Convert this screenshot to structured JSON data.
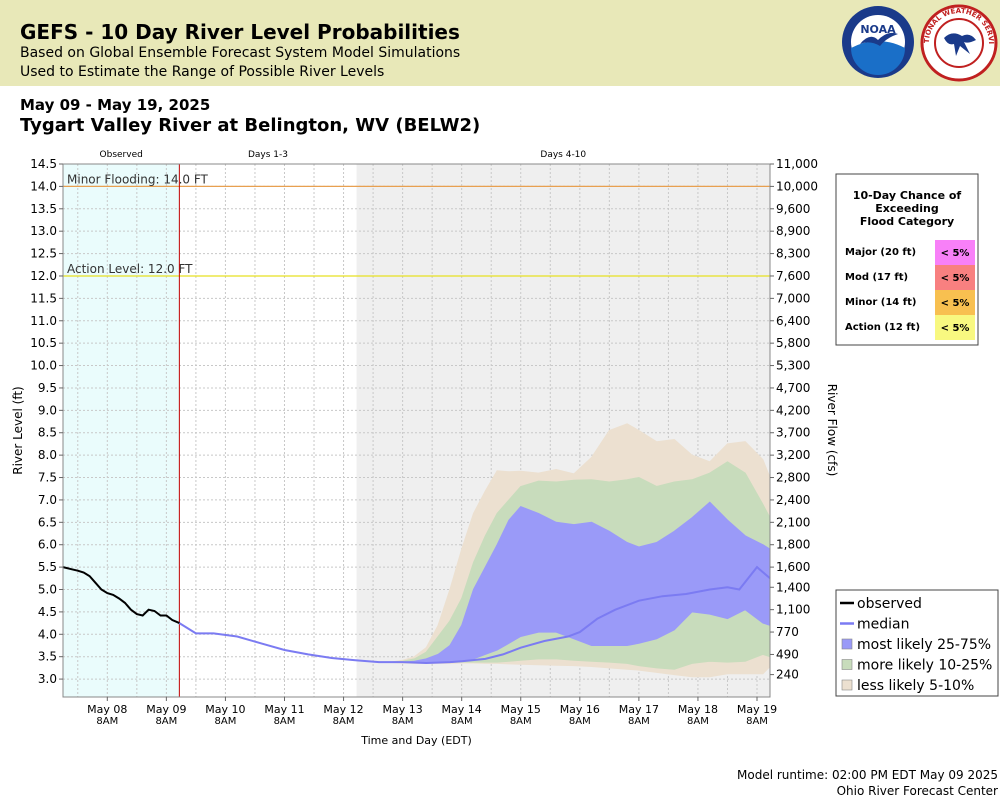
{
  "header": {
    "title": "GEFS - 10 Day River Level Probabilities",
    "subtitle1": "Based on Global Ensemble Forecast System Model Simulations",
    "subtitle2": "Used to Estimate the Range of Possible River Levels",
    "noaa_logo_text": "NOAA",
    "nws_logo_text": "NATIONAL WEATHER SERVICE"
  },
  "date_range": "May 09 - May 19, 2025",
  "station": "Tygart Valley River at Belington, WV (BELW2)",
  "footer": {
    "runtime": "Model runtime: 02:00 PM EDT May 09 2025",
    "center": "Ohio River Forecast Center"
  },
  "colors": {
    "observed_bg": "#eafcfc",
    "days4_10_bg": "#efefef",
    "observed_line": "#000000",
    "median": "#7b7bf2",
    "band_25_75": "#9a9af8",
    "band_10_25": "#c8dcbc",
    "band_5_10": "#ece0d0",
    "minor_line": "#e8a050",
    "action_line": "#e8e020",
    "forecast_start": "#c00000",
    "major_cell": "#f880f8",
    "mod_cell": "#f88080",
    "minor_cell": "#f8c050",
    "action_cell": "#f8f880"
  },
  "chart_data": {
    "type": "area",
    "xlabel": "Time and Day (EDT)",
    "ylabel": "River Level (ft)",
    "y2label": "River Flow (cfs)",
    "ylim": [
      2.6,
      14.5
    ],
    "xlim": [
      -1.75,
      10.22
    ],
    "x_unit": "days since May 09 8AM EDT",
    "forecast_start": 0.22,
    "days4_start": 3.22,
    "period_labels": [
      "Observed",
      "Days 1-3",
      "Days 4-10"
    ],
    "yticks": [
      3.0,
      3.5,
      4.0,
      4.5,
      5.0,
      5.5,
      6.0,
      6.5,
      7.0,
      7.5,
      8.0,
      8.5,
      9.0,
      9.5,
      10.0,
      10.5,
      11.0,
      11.5,
      12.0,
      12.5,
      13.0,
      13.5,
      14.0,
      14.5
    ],
    "ytick_labels": [
      "3.0",
      "3.5",
      "4.0",
      "4.5",
      "5.0",
      "5.5",
      "6.0",
      "6.5",
      "7.0",
      "7.5",
      "8.0",
      "8.5",
      "9.0",
      "9.5",
      "10.0",
      "10.5",
      "11.0",
      "11.5",
      "12.0",
      "12.5",
      "13.0",
      "13.5",
      "14.0",
      "14.5"
    ],
    "y2ticks": [
      {
        "stage": 3.1,
        "label": "240"
      },
      {
        "stage": 3.55,
        "label": "490"
      },
      {
        "stage": 4.05,
        "label": "770"
      },
      {
        "stage": 4.55,
        "label": "1,100"
      },
      {
        "stage": 5.05,
        "label": "1,400"
      },
      {
        "stage": 5.5,
        "label": "1,600"
      },
      {
        "stage": 6.0,
        "label": "1,800"
      },
      {
        "stage": 6.5,
        "label": "2,100"
      },
      {
        "stage": 7.0,
        "label": "2,400"
      },
      {
        "stage": 7.5,
        "label": "2,800"
      },
      {
        "stage": 8.0,
        "label": "3,200"
      },
      {
        "stage": 8.5,
        "label": "3,700"
      },
      {
        "stage": 9.0,
        "label": "4,200"
      },
      {
        "stage": 9.5,
        "label": "4,700"
      },
      {
        "stage": 10.0,
        "label": "5,300"
      },
      {
        "stage": 10.5,
        "label": "5,800"
      },
      {
        "stage": 11.0,
        "label": "6,400"
      },
      {
        "stage": 11.5,
        "label": "7,000"
      },
      {
        "stage": 12.0,
        "label": "7,600"
      },
      {
        "stage": 12.5,
        "label": "8,300"
      },
      {
        "stage": 13.0,
        "label": "8,900"
      },
      {
        "stage": 13.5,
        "label": "9,600"
      },
      {
        "stage": 14.0,
        "label": "10,000"
      },
      {
        "stage": 14.5,
        "label": "11,000"
      }
    ],
    "xticks": [
      {
        "x": -1.0,
        "label1": "May 08",
        "label2": "8AM"
      },
      {
        "x": 0.0,
        "label1": "May 09",
        "label2": "8AM"
      },
      {
        "x": 1.0,
        "label1": "May 10",
        "label2": "8AM"
      },
      {
        "x": 2.0,
        "label1": "May 11",
        "label2": "8AM"
      },
      {
        "x": 3.0,
        "label1": "May 12",
        "label2": "8AM"
      },
      {
        "x": 4.0,
        "label1": "May 13",
        "label2": "8AM"
      },
      {
        "x": 5.0,
        "label1": "May 14",
        "label2": "8AM"
      },
      {
        "x": 6.0,
        "label1": "May 15",
        "label2": "8AM"
      },
      {
        "x": 7.0,
        "label1": "May 16",
        "label2": "8AM"
      },
      {
        "x": 8.0,
        "label1": "May 17",
        "label2": "8AM"
      },
      {
        "x": 9.0,
        "label1": "May 18",
        "label2": "8AM"
      },
      {
        "x": 10.0,
        "label1": "May 19",
        "label2": "8AM"
      }
    ],
    "thresholds": [
      {
        "name": "Minor Flooding",
        "label": "Minor Flooding: 14.0 FT",
        "stage": 14.0
      },
      {
        "name": "Action Level",
        "label": "Action Level: 12.0 FT",
        "stage": 12.0
      }
    ],
    "observed": {
      "x": [
        -1.75,
        -1.6,
        -1.5,
        -1.4,
        -1.3,
        -1.2,
        -1.1,
        -1.0,
        -0.9,
        -0.8,
        -0.7,
        -0.6,
        -0.5,
        -0.4,
        -0.3,
        -0.2,
        -0.1,
        0.0,
        0.1,
        0.22
      ],
      "y": [
        5.5,
        5.45,
        5.42,
        5.38,
        5.3,
        5.15,
        5.0,
        4.92,
        4.88,
        4.8,
        4.7,
        4.55,
        4.45,
        4.42,
        4.55,
        4.52,
        4.42,
        4.42,
        4.32,
        4.25
      ]
    },
    "median": {
      "x": [
        0.22,
        0.5,
        0.8,
        1.2,
        1.6,
        2.0,
        2.4,
        2.8,
        3.2,
        3.6,
        4.0,
        4.4,
        4.8,
        5.0,
        5.4,
        5.7,
        6.0,
        6.4,
        6.8,
        7.0,
        7.3,
        7.6,
        8.0,
        8.4,
        8.8,
        9.2,
        9.5,
        9.7,
        10.0,
        10.22
      ],
      "y": [
        4.25,
        4.02,
        4.02,
        3.95,
        3.8,
        3.65,
        3.55,
        3.47,
        3.42,
        3.38,
        3.38,
        3.36,
        3.38,
        3.4,
        3.45,
        3.55,
        3.7,
        3.85,
        3.95,
        4.05,
        4.35,
        4.55,
        4.75,
        4.85,
        4.9,
        5.0,
        5.05,
        5.0,
        5.5,
        5.25
      ]
    },
    "series": [
      {
        "name": "less likely 5-10%",
        "x": [
          3.8,
          4.0,
          4.2,
          4.4,
          4.6,
          4.8,
          5.0,
          5.2,
          5.4,
          5.6,
          5.8,
          6.0,
          6.3,
          6.6,
          6.9,
          7.2,
          7.5,
          7.8,
          8.0,
          8.3,
          8.6,
          8.9,
          9.2,
          9.5,
          9.8,
          10.1,
          10.22
        ],
        "low": [
          3.37,
          3.36,
          3.35,
          3.35,
          3.35,
          3.35,
          3.36,
          3.36,
          3.35,
          3.35,
          3.34,
          3.33,
          3.32,
          3.31,
          3.3,
          3.28,
          3.25,
          3.22,
          3.2,
          3.15,
          3.1,
          3.05,
          3.05,
          3.12,
          3.12,
          3.12,
          3.28
        ],
        "high": [
          3.38,
          3.42,
          3.5,
          3.7,
          4.2,
          5.0,
          5.9,
          6.7,
          7.2,
          7.65,
          7.63,
          7.64,
          7.6,
          7.68,
          7.58,
          7.95,
          8.55,
          8.7,
          8.55,
          8.3,
          8.35,
          8.0,
          7.85,
          8.25,
          8.3,
          7.9,
          7.5
        ]
      },
      {
        "name": "more likely 10-25%",
        "x": [
          3.8,
          4.0,
          4.2,
          4.4,
          4.6,
          4.8,
          5.0,
          5.2,
          5.4,
          5.6,
          5.8,
          6.0,
          6.3,
          6.6,
          6.9,
          7.2,
          7.5,
          7.8,
          8.0,
          8.3,
          8.6,
          8.9,
          9.2,
          9.5,
          9.8,
          10.1,
          10.22
        ],
        "low": [
          3.37,
          3.37,
          3.37,
          3.37,
          3.37,
          3.37,
          3.38,
          3.38,
          3.38,
          3.38,
          3.4,
          3.42,
          3.45,
          3.45,
          3.42,
          3.4,
          3.38,
          3.35,
          3.3,
          3.25,
          3.22,
          3.35,
          3.4,
          3.38,
          3.4,
          3.55,
          3.5
        ],
        "high": [
          3.38,
          3.4,
          3.45,
          3.6,
          3.95,
          4.3,
          4.8,
          5.6,
          6.2,
          6.7,
          7.0,
          7.3,
          7.42,
          7.4,
          7.44,
          7.45,
          7.4,
          7.45,
          7.5,
          7.3,
          7.4,
          7.45,
          7.6,
          7.85,
          7.6,
          6.9,
          6.6
        ]
      },
      {
        "name": "most likely 25-75%",
        "x": [
          3.8,
          4.0,
          4.2,
          4.4,
          4.6,
          4.8,
          5.0,
          5.2,
          5.4,
          5.6,
          5.8,
          6.0,
          6.3,
          6.6,
          6.9,
          7.2,
          7.5,
          7.8,
          8.0,
          8.3,
          8.6,
          8.9,
          9.2,
          9.5,
          9.8,
          10.1,
          10.22
        ],
        "low": [
          3.37,
          3.37,
          3.37,
          3.37,
          3.37,
          3.37,
          3.4,
          3.45,
          3.55,
          3.65,
          3.8,
          3.95,
          4.05,
          4.05,
          3.9,
          3.75,
          3.75,
          3.75,
          3.8,
          3.9,
          4.1,
          4.5,
          4.45,
          4.35,
          4.55,
          4.25,
          4.2
        ],
        "high": [
          3.38,
          3.38,
          3.4,
          3.45,
          3.55,
          3.75,
          4.2,
          5.0,
          5.5,
          6.0,
          6.55,
          6.85,
          6.7,
          6.5,
          6.45,
          6.5,
          6.3,
          6.05,
          5.95,
          6.05,
          6.3,
          6.6,
          6.95,
          6.55,
          6.2,
          6.0,
          5.9
        ]
      }
    ],
    "legend": [
      {
        "name": "observed",
        "kind": "line",
        "color": "#000000"
      },
      {
        "name": "median",
        "kind": "line",
        "color": "#7b7bf2"
      },
      {
        "name": "most likely 25-75%",
        "kind": "box",
        "color": "#9a9af8"
      },
      {
        "name": "more likely 10-25%",
        "kind": "box",
        "color": "#c8dcbc"
      },
      {
        "name": "less likely 5-10%",
        "kind": "box",
        "color": "#ece0d0"
      }
    ],
    "legend_placement": "bottom-right",
    "flood_box": {
      "title_lines": [
        "10-Day Chance of",
        "Exceeding",
        "Flood Category"
      ],
      "rows": [
        {
          "label": "Major (20 ft)",
          "value": "< 5%",
          "color": "#f880f8"
        },
        {
          "label": "Mod (17 ft)",
          "value": "< 5%",
          "color": "#f88080"
        },
        {
          "label": "Minor (14 ft)",
          "value": "< 5%",
          "color": "#f8c050"
        },
        {
          "label": "Action (12 ft)",
          "value": "< 5%",
          "color": "#f8f880"
        }
      ]
    },
    "grid": true
  }
}
